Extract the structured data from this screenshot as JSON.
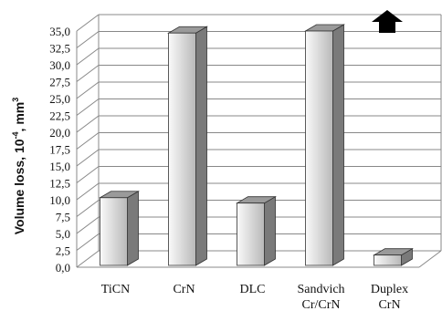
{
  "chart_data": {
    "type": "bar",
    "categories": [
      [
        "TiCN"
      ],
      [
        "CrN"
      ],
      [
        "DLC"
      ],
      [
        "Sandvich",
        "Cr/CrN"
      ],
      [
        "Duplex",
        "CrN"
      ]
    ],
    "values": [
      10.3,
      34.7,
      9.5,
      35.0,
      1.8
    ],
    "ylabel": {
      "prefix": "Volume loss,  10",
      "exp1": "-4",
      "mid": ", mm",
      "exp2": "3"
    },
    "ylim": [
      0,
      35
    ],
    "ytick_step": 2.5,
    "ytick_labels": [
      "0,0",
      "2,5",
      "5,0",
      "7,5",
      "10,0",
      "12,5",
      "15,0",
      "17,5",
      "20,0",
      "22,5",
      "25,0",
      "27,5",
      "30,0",
      "32,5",
      "35,0"
    ],
    "grid": true,
    "annotation": "up-arrow-icon",
    "colors": {
      "bar_front_light": "#f4f4f4",
      "bar_front_dark": "#b8b8b8",
      "bar_side": "#7a7a7a",
      "bar_top": "#9a9a9a",
      "grid": "#888888",
      "arrow": "#000000"
    }
  }
}
